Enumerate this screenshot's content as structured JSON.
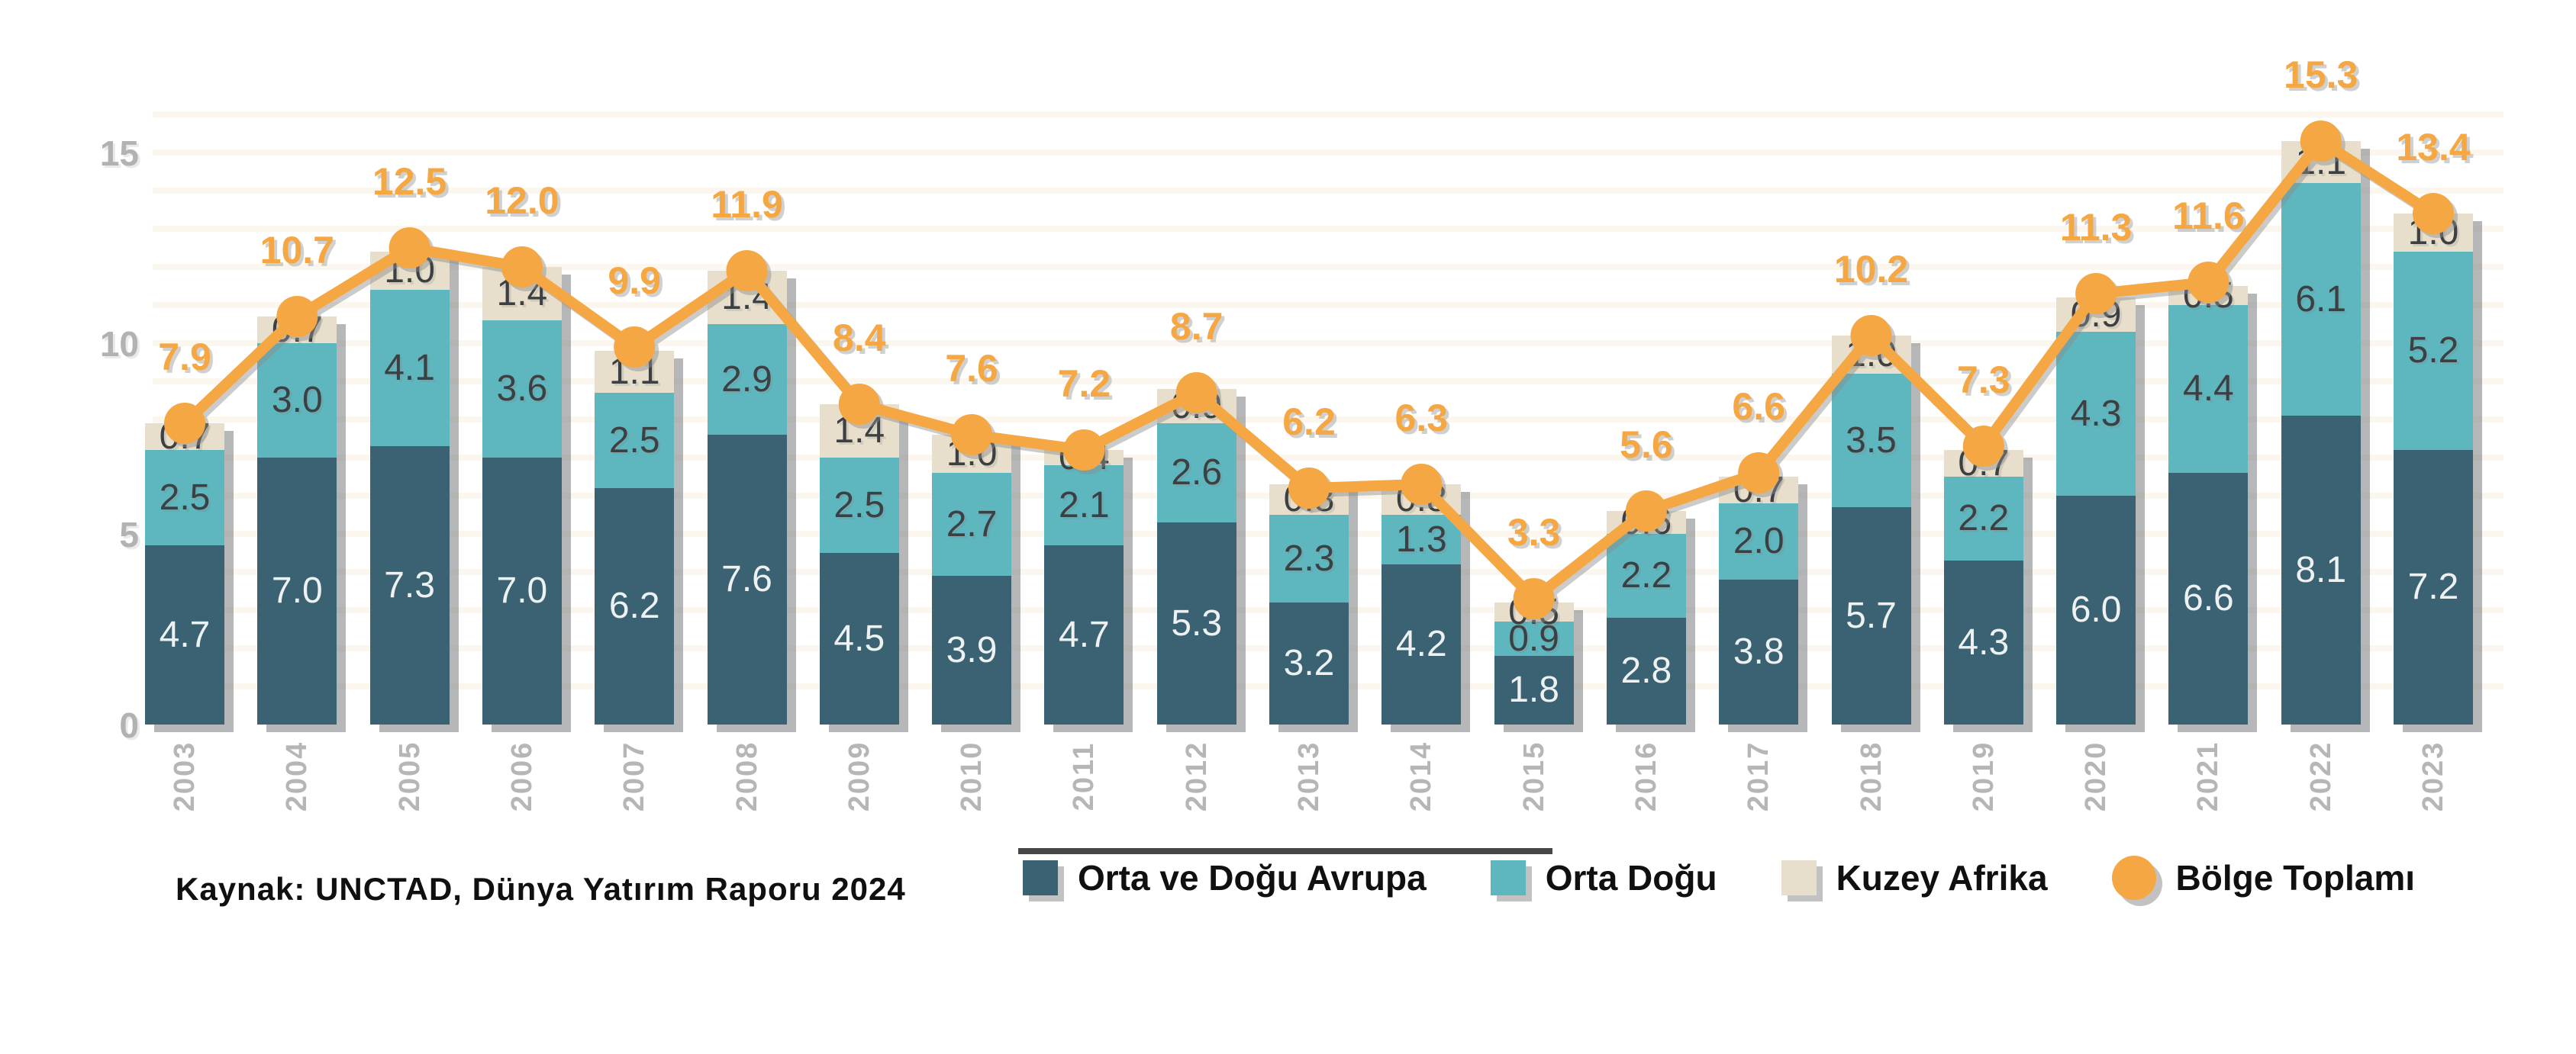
{
  "source": {
    "label": "Kaynak: UNCTAD, Dünya Yatırım Raporu 2024"
  },
  "legend": [
    {
      "label": "Orta ve Doğu Avrupa",
      "color": "#3a6272",
      "shape": "square"
    },
    {
      "label": "Orta Doğu",
      "color": "#5eb6bf",
      "shape": "square"
    },
    {
      "label": "Kuzey Afrika",
      "color": "#e7dfcb",
      "shape": "square"
    },
    {
      "label": "Bölge Toplamı",
      "color": "#f4a742",
      "shape": "circle"
    }
  ],
  "chart_data": {
    "type": "bar",
    "stacked": true,
    "categories": [
      "2003",
      "2004",
      "2005",
      "2006",
      "2007",
      "2008",
      "2009",
      "2010",
      "2011",
      "2012",
      "2013",
      "2014",
      "2015",
      "2016",
      "2017",
      "2018",
      "2019",
      "2020",
      "2021",
      "2022",
      "2023"
    ],
    "series": [
      {
        "name": "Orta ve Doğu Avrupa",
        "color": "#3a6272",
        "label_color": "on-dark",
        "values": [
          4.7,
          7.0,
          7.3,
          7.0,
          6.2,
          7.6,
          4.5,
          3.9,
          4.7,
          5.3,
          3.2,
          4.2,
          1.8,
          2.8,
          3.8,
          5.7,
          4.3,
          6.0,
          6.6,
          8.1,
          7.2
        ]
      },
      {
        "name": "Orta Doğu",
        "color": "#5eb6bf",
        "label_color": "on-light",
        "values": [
          2.5,
          3.0,
          4.1,
          3.6,
          2.5,
          2.9,
          2.5,
          2.7,
          2.1,
          2.6,
          2.3,
          1.3,
          0.9,
          2.2,
          2.0,
          3.5,
          2.2,
          4.3,
          4.4,
          6.1,
          5.2
        ]
      },
      {
        "name": "Kuzey Afrika",
        "color": "#e7dfcb",
        "label_color": "on-light",
        "values": [
          0.7,
          0.7,
          1.0,
          1.4,
          1.1,
          1.4,
          1.4,
          1.0,
          0.4,
          0.9,
          0.8,
          0.8,
          0.5,
          0.6,
          0.7,
          1.0,
          0.7,
          0.9,
          0.5,
          1.1,
          1.0
        ]
      }
    ],
    "line_series": {
      "name": "Bölge Toplamı",
      "color": "#f4a742",
      "values": [
        7.9,
        10.7,
        12.5,
        12.0,
        9.9,
        11.9,
        8.4,
        7.6,
        7.2,
        8.7,
        6.2,
        6.3,
        3.3,
        5.6,
        6.6,
        10.2,
        7.3,
        11.3,
        11.6,
        15.3,
        13.4
      ]
    },
    "yticks": [
      "0",
      "5",
      "10",
      "15"
    ],
    "ylim": [
      0,
      16
    ],
    "grid": "faint-horizontal",
    "legend_position": "bottom"
  }
}
